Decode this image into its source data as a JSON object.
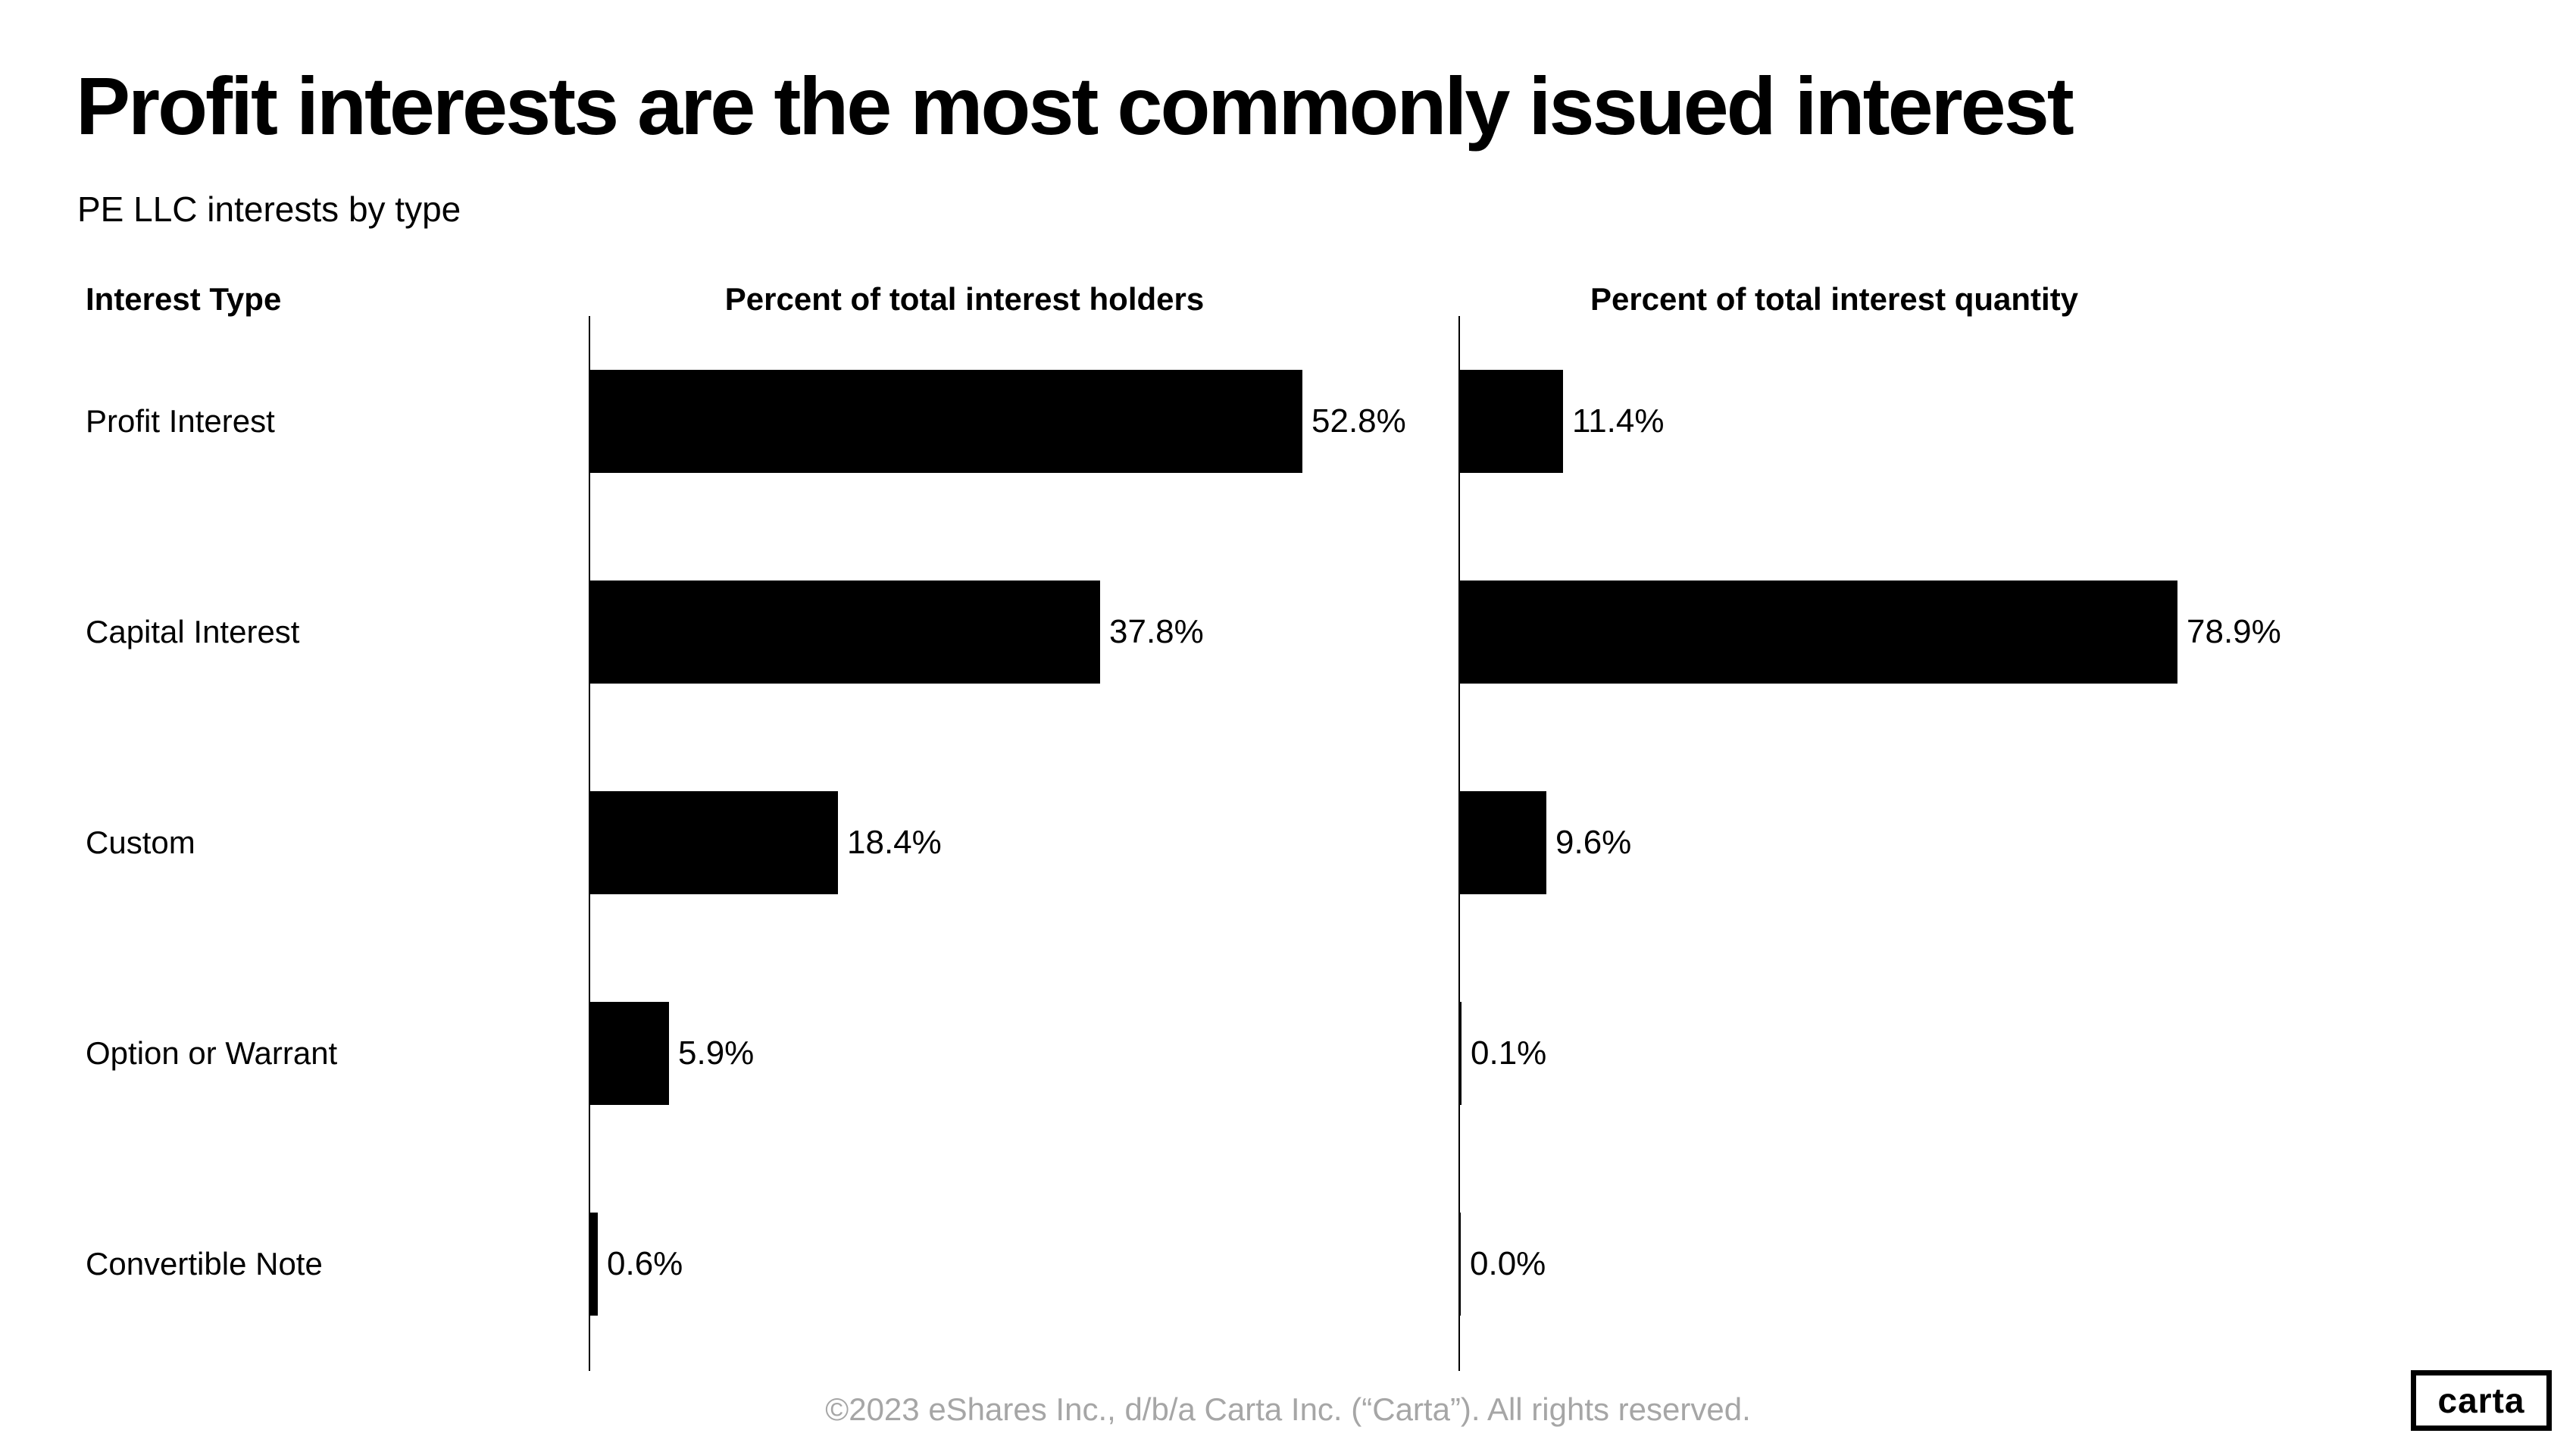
{
  "page": {
    "title": "Profit interests are the most commonly issued interest",
    "subtitle": "PE LLC interests by type",
    "footer": "©2023 eShares Inc., d/b/a Carta Inc. (“Carta”). All rights reserved.",
    "logo_text": "carta"
  },
  "colors": {
    "bar": "#000000",
    "text": "#000000",
    "footer_text": "#a6a6a6",
    "background": "#ffffff"
  },
  "chart_data": {
    "type": "bar",
    "orientation": "horizontal",
    "title": "Profit interests are the most commonly issued interest",
    "subtitle": "PE LLC interests by type",
    "category_header": "Interest Type",
    "categories": [
      "Profit Interest",
      "Capital Interest",
      "Custom",
      "Option or Warrant",
      "Convertible Note"
    ],
    "series": [
      {
        "name": "Percent of total interest holders",
        "values": [
          52.8,
          37.8,
          18.4,
          5.9,
          0.6
        ],
        "value_labels": [
          "52.8%",
          "37.8%",
          "18.4%",
          "5.9%",
          "0.6%"
        ]
      },
      {
        "name": "Percent of total interest quantity",
        "values": [
          11.4,
          78.9,
          9.6,
          0.1,
          0.0
        ],
        "value_labels": [
          "11.4%",
          "78.9%",
          "9.6%",
          "0.1%",
          "0.0%"
        ]
      }
    ],
    "value_label_format": "one_decimal_percent",
    "panels_scaled_independently": true,
    "grid": false,
    "legend": false,
    "bar_color": "#000000"
  }
}
